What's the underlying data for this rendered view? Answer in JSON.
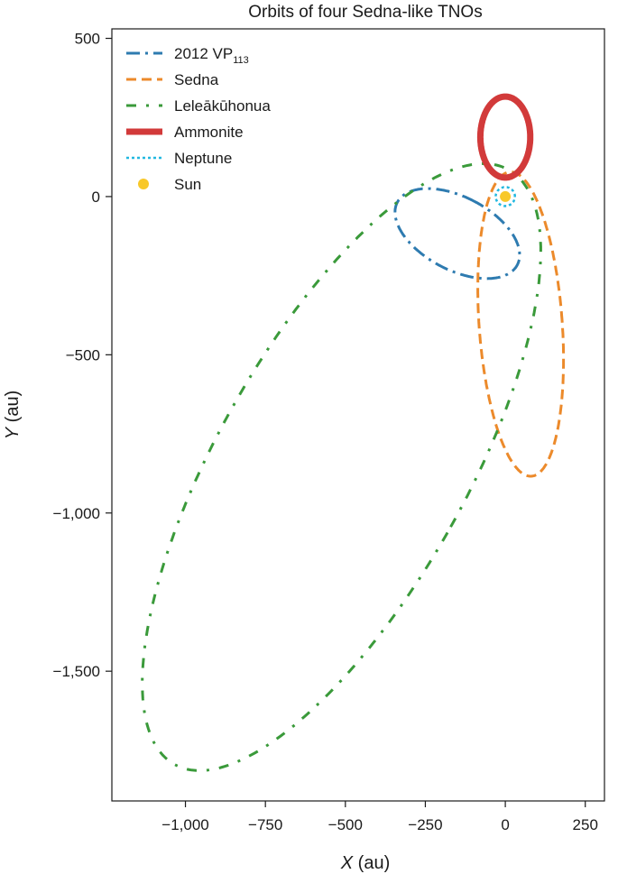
{
  "chart_data": {
    "type": "line",
    "title": "Orbits of four Sedna-like TNOs",
    "xlabel": {
      "var": "X",
      "unit": " (au)"
    },
    "ylabel": {
      "var": "Y",
      "unit": " (au)"
    },
    "xlim": [
      -1230,
      310
    ],
    "ylim": [
      -1910,
      530
    ],
    "xticks": [
      -1000,
      -750,
      -500,
      -250,
      0,
      250
    ],
    "xtick_labels": [
      "−1,000",
      "−750",
      "−500",
      "−250",
      "0",
      "250"
    ],
    "yticks": [
      500,
      0,
      -500,
      -1000,
      -1500
    ],
    "ytick_labels": [
      "500",
      "0",
      "−500",
      "−1,000",
      "−1,500"
    ],
    "grid": false,
    "legend_position": "top-left",
    "series": [
      {
        "name": "2012 VP",
        "name_subscript": "113",
        "color": "#2e7bb0",
        "style": "dashdot",
        "shape": "ellipse",
        "center": [
          -150,
          -117
        ],
        "semi_axes": [
          115,
          212
        ],
        "rotation_deg": 62
      },
      {
        "name": "Sedna",
        "name_subscript": "",
        "color": "#ec8a2b",
        "style": "dashed",
        "shape": "ellipse",
        "center": [
          48,
          -403
        ],
        "semi_axes": [
          130,
          482
        ],
        "rotation_deg": 4
      },
      {
        "name": "Leleākūhonua",
        "name_subscript": "",
        "color": "#3a9a3a",
        "style": "dashdot-sparse",
        "shape": "ellipse",
        "center": [
          -512,
          -855
        ],
        "semi_axes": [
          390,
          1075
        ],
        "rotation_deg": -29
      },
      {
        "name": "Ammonite",
        "name_subscript": "",
        "color": "#d23a3a",
        "style": "solid-thick",
        "shape": "ellipse",
        "center": [
          0,
          188
        ],
        "semi_axes": [
          78,
          128
        ],
        "rotation_deg": 0
      },
      {
        "name": "Neptune",
        "name_subscript": "",
        "color": "#22b8e0",
        "style": "dotted",
        "shape": "circle",
        "center": [
          0,
          0
        ],
        "radius": 30
      },
      {
        "name": "Sun",
        "name_subscript": "",
        "color": "#f8c82a",
        "style": "marker",
        "shape": "point",
        "center": [
          0,
          0
        ]
      }
    ]
  }
}
